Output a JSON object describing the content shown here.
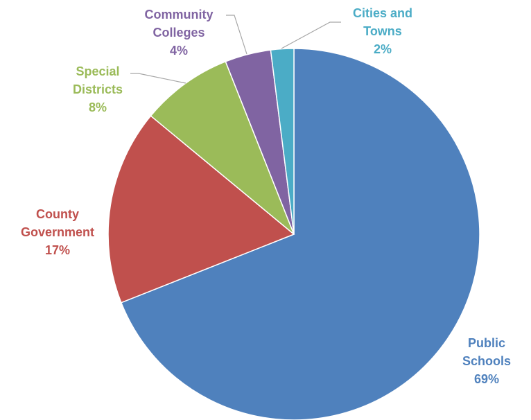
{
  "chart_data": {
    "type": "pie",
    "title": "",
    "slices": [
      {
        "name": "Public Schools",
        "label_lines": [
          "Public",
          "Schools"
        ],
        "value": 69,
        "display": "69%",
        "color": "#4f81bd"
      },
      {
        "name": "County Government",
        "label_lines": [
          "County",
          "Government"
        ],
        "value": 17,
        "display": "17%",
        "color": "#c0504d"
      },
      {
        "name": "Special Districts",
        "label_lines": [
          "Special",
          "Districts"
        ],
        "value": 8,
        "display": "8%",
        "color": "#9bbb59"
      },
      {
        "name": "Community Colleges",
        "label_lines": [
          "Community",
          "Colleges"
        ],
        "value": 4,
        "display": "4%",
        "color": "#8064a2"
      },
      {
        "name": "Cities and Towns",
        "label_lines": [
          "Cities and",
          "Towns"
        ],
        "value": 2,
        "display": "2%",
        "color": "#4bacc6"
      }
    ],
    "start": "12 o'clock",
    "direction": "clockwise",
    "legend": "none"
  }
}
